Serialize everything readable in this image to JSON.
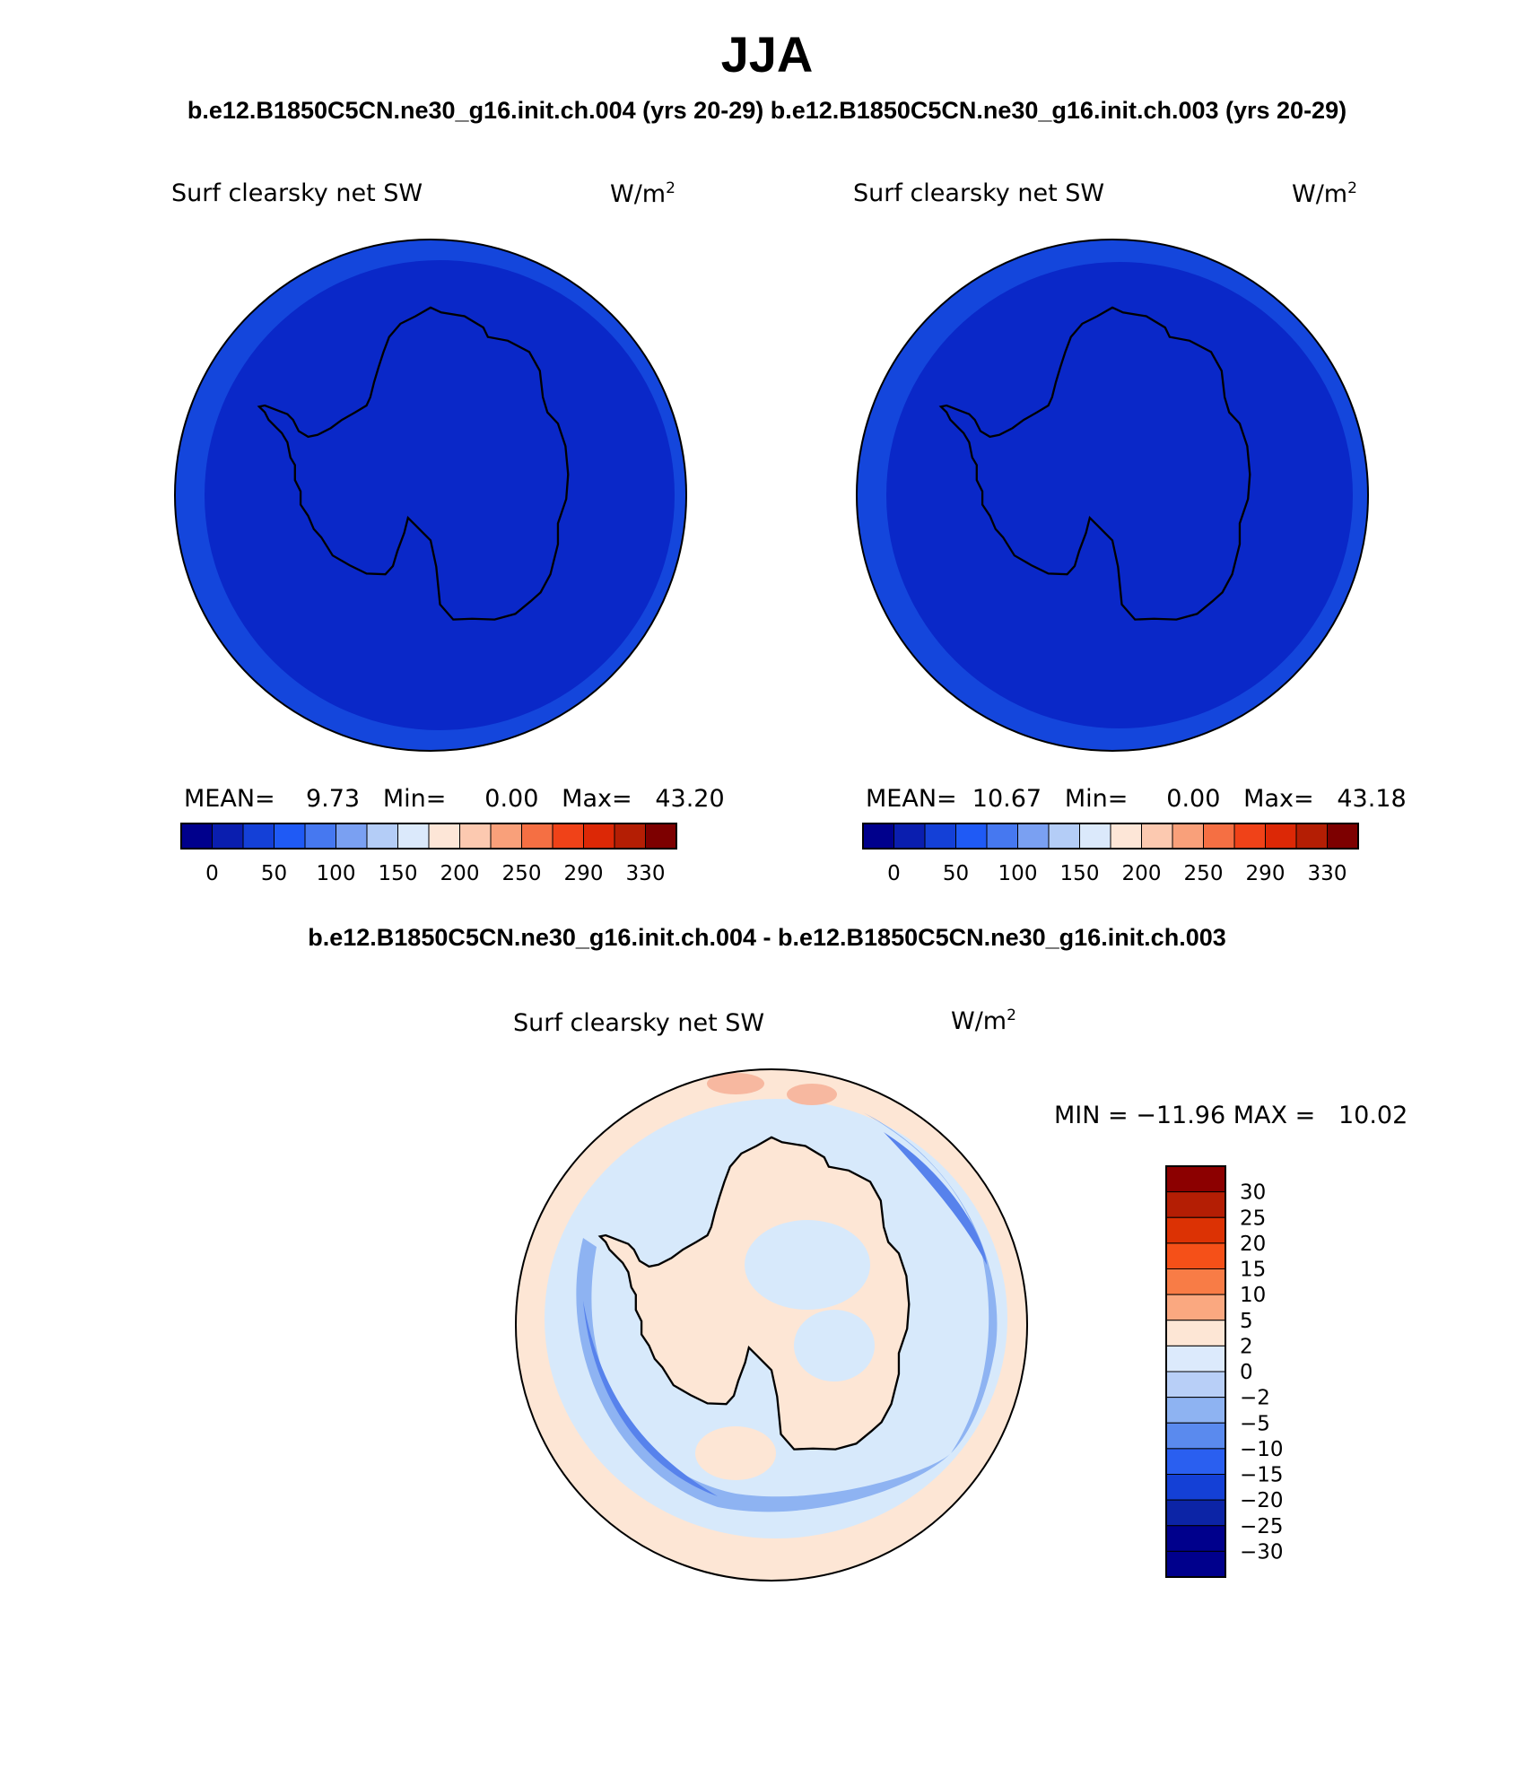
{
  "title": "JJA",
  "subtitle_left": "b.e12.B1850C5CN.ne30_g16.init.ch.004 (yrs 20-29)",
  "subtitle_right": "b.e12.B1850C5CN.ne30_g16.init.ch.003 (yrs 20-29)",
  "diff_subtitle": "b.e12.B1850C5CN.ne30_g16.init.ch.004 - b.e12.B1850C5CN.ne30_g16.init.ch.003",
  "panels": [
    {
      "variable": "Surf clearsky net SW",
      "units": "W/m",
      "units_sup": "2",
      "stats": "MEAN=    9.73   Min=     0.00   Max=   43.20",
      "colorbar_labels": [
        "0",
        "50",
        "100",
        "150",
        "200",
        "250",
        "290",
        "330"
      ]
    },
    {
      "variable": "Surf clearsky net SW",
      "units": "W/m",
      "units_sup": "2",
      "stats": "MEAN=  10.67   Min=     0.00   Max=   43.18",
      "colorbar_labels": [
        "0",
        "50",
        "100",
        "150",
        "200",
        "250",
        "290",
        "330"
      ]
    }
  ],
  "diff_panel": {
    "variable": "Surf clearsky net SW",
    "units": "W/m",
    "units_sup": "2",
    "stats": "MIN = −11.96 MAX =   10.02",
    "colorbar_labels": [
      "30",
      "25",
      "20",
      "15",
      "10",
      "5",
      "2",
      "0",
      "−2",
      "−5",
      "−10",
      "−15",
      "−20",
      "−25",
      "−30"
    ]
  },
  "colors": {
    "field_inner": "#0a28c8",
    "field_outer": "#1446dc",
    "diff_warm": "#fde6d5",
    "diff_pale_blue": "#d7e9fb",
    "diff_mid_blue": "#8eb3f2",
    "diff_deep_blue": "#5782ec",
    "palette_abs": [
      "#00008c",
      "#0a1eaf",
      "#1440d7",
      "#1f5af5",
      "#4678f0",
      "#7aa0f2",
      "#b4cdf7",
      "#dbe9fb",
      "#fde6d7",
      "#fcc9b0",
      "#f9a07a",
      "#f56f43",
      "#f04218",
      "#dc2806",
      "#b41e04",
      "#7d0000"
    ],
    "palette_diff": [
      "#8c0000",
      "#b41e04",
      "#dc3204",
      "#f55018",
      "#f87c46",
      "#faa880",
      "#fde6d5",
      "#dceafc",
      "#b8cff7",
      "#8eb3f2",
      "#5a8aee",
      "#2a5ff0",
      "#1440d6",
      "#0c24a6",
      "#00008c"
    ]
  }
}
